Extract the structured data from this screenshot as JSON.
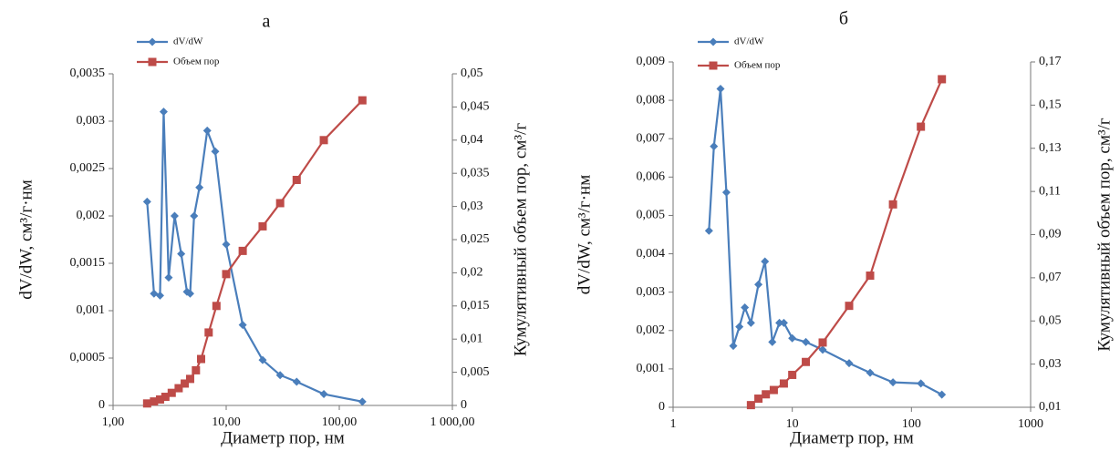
{
  "chart_data": [
    {
      "type": "line",
      "title": "а",
      "x_label": "Диаметр пор, нм",
      "y_label": "dV/dW, см³/г·нм",
      "y2_label": "Кумулятивный объем пор, см³/г",
      "x_scale": "log",
      "legend": "top-left",
      "xlim": [
        1,
        1000
      ],
      "xticks": [
        {
          "value": 1,
          "label": "1,00"
        },
        {
          "value": 10,
          "label": "10,00"
        },
        {
          "value": 100,
          "label": "100,00"
        },
        {
          "value": 1000,
          "label": "1 000,00"
        }
      ],
      "ylim": [
        0,
        0.0035
      ],
      "yticks": [
        0,
        {
          "value": 0.0005,
          "label": "0,0005"
        },
        {
          "value": 0.001,
          "label": "0,001"
        },
        {
          "value": 0.0015,
          "label": "0,0015"
        },
        {
          "value": 0.002,
          "label": "0,002"
        },
        {
          "value": 0.0025,
          "label": "0,0025"
        },
        {
          "value": 0.003,
          "label": "0,003"
        },
        {
          "value": 0.0035,
          "label": "0,0035"
        }
      ],
      "y2lim": [
        0,
        0.05
      ],
      "y2ticks": [
        0,
        {
          "value": 0.005,
          "label": "0,005"
        },
        {
          "value": 0.01,
          "label": "0,01"
        },
        {
          "value": 0.015,
          "label": "0,015"
        },
        {
          "value": 0.02,
          "label": "0,02"
        },
        {
          "value": 0.025,
          "label": "0,025"
        },
        {
          "value": 0.03,
          "label": "0,03"
        },
        {
          "value": 0.035,
          "label": "0,035"
        },
        {
          "value": 0.04,
          "label": "0,04"
        },
        {
          "value": 0.045,
          "label": "0,045"
        },
        {
          "value": 0.05,
          "label": "0,05"
        }
      ],
      "series": [
        {
          "name": "dV/dW",
          "color": "#4a7ebb",
          "marker": "diamond",
          "x": [
            2.0,
            2.3,
            2.6,
            2.8,
            3.1,
            3.5,
            4.0,
            4.5,
            4.8,
            5.2,
            5.8,
            6.8,
            8.0,
            10,
            14,
            21,
            30,
            42,
            73,
            160
          ],
          "values": [
            0.00215,
            0.00118,
            0.00116,
            0.0031,
            0.00135,
            0.002,
            0.0016,
            0.0012,
            0.00118,
            0.002,
            0.0023,
            0.0029,
            0.00268,
            0.0017,
            0.00085,
            0.00048,
            0.00032,
            0.00025,
            0.00012,
            4e-05
          ]
        },
        {
          "name": "Объем пор",
          "color": "#be4b48",
          "marker": "square",
          "axis": "y2",
          "x": [
            2.0,
            2.3,
            2.6,
            2.9,
            3.3,
            3.8,
            4.3,
            4.8,
            5.4,
            6.0,
            7.0,
            8.2,
            10,
            14,
            21,
            30,
            42,
            73,
            160
          ],
          "values": [
            0.0003,
            0.0006,
            0.0009,
            0.0013,
            0.0019,
            0.0026,
            0.0033,
            0.004,
            0.0053,
            0.007,
            0.011,
            0.015,
            0.0198,
            0.0233,
            0.027,
            0.0305,
            0.034,
            0.04,
            0.046
          ]
        }
      ]
    },
    {
      "type": "line",
      "title": "б",
      "x_label": "Диаметр пор, нм",
      "y_label": "dV/dW, см³/г·нм",
      "y2_label": "Кумулятивный объем пор, см³/г",
      "x_scale": "log",
      "legend": "top-left",
      "xlim": [
        1,
        1000
      ],
      "xticks": [
        1,
        10,
        100,
        1000
      ],
      "ylim": [
        0,
        0.009
      ],
      "yticks": [
        0,
        {
          "value": 0.001,
          "label": "0,001"
        },
        {
          "value": 0.002,
          "label": "0,002"
        },
        {
          "value": 0.003,
          "label": "0,003"
        },
        {
          "value": 0.004,
          "label": "0,004"
        },
        {
          "value": 0.005,
          "label": "0,005"
        },
        {
          "value": 0.006,
          "label": "0,006"
        },
        {
          "value": 0.007,
          "label": "0,007"
        },
        {
          "value": 0.008,
          "label": "0,008"
        },
        {
          "value": 0.009,
          "label": "0,009"
        }
      ],
      "y2lim": [
        0.01,
        0.17
      ],
      "y2ticks": [
        {
          "value": 0.01,
          "label": "0,01"
        },
        {
          "value": 0.03,
          "label": "0,03"
        },
        {
          "value": 0.05,
          "label": "0,05"
        },
        {
          "value": 0.07,
          "label": "0,07"
        },
        {
          "value": 0.09,
          "label": "0,09"
        },
        {
          "value": 0.11,
          "label": "0,11"
        },
        {
          "value": 0.13,
          "label": "0,13"
        },
        {
          "value": 0.15,
          "label": "0,15"
        },
        {
          "value": 0.17,
          "label": "0,17"
        }
      ],
      "series": [
        {
          "name": "dV/dW",
          "color": "#4a7ebb",
          "marker": "diamond",
          "x": [
            2.0,
            2.2,
            2.5,
            2.8,
            3.2,
            3.6,
            4.0,
            4.5,
            5.2,
            5.9,
            6.8,
            7.8,
            8.5,
            10,
            13,
            18,
            30,
            45,
            70,
            120,
            180
          ],
          "values": [
            0.0046,
            0.0068,
            0.0083,
            0.0056,
            0.0016,
            0.0021,
            0.0026,
            0.0022,
            0.0032,
            0.0038,
            0.0017,
            0.0022,
            0.0022,
            0.0018,
            0.0017,
            0.0015,
            0.00115,
            0.0009,
            0.00065,
            0.00062,
            0.00033
          ]
        },
        {
          "name": "Объем пор",
          "color": "#be4b48",
          "marker": "square",
          "axis": "y2",
          "x": [
            4.5,
            5.2,
            6.0,
            7.0,
            8.5,
            10,
            13,
            18,
            30,
            45,
            70,
            120,
            180
          ],
          "values": [
            0.011,
            0.014,
            0.016,
            0.018,
            0.021,
            0.025,
            0.031,
            0.04,
            0.057,
            0.071,
            0.104,
            0.14,
            0.162
          ]
        }
      ]
    }
  ]
}
